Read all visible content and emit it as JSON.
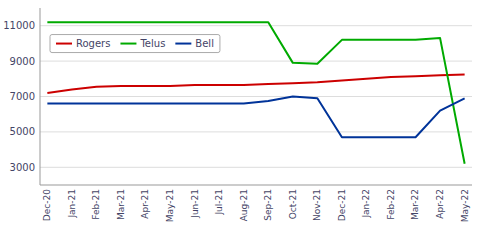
{
  "chart_data": {
    "type": "line",
    "categories": [
      "Dec-20",
      "Jan-21",
      "Feb-21",
      "Mar-21",
      "Apr-21",
      "May-21",
      "Jun-21",
      "Jul-21",
      "Aug-21",
      "Sep-21",
      "Oct-21",
      "Nov-21",
      "Dec-21",
      "Jan-22",
      "Feb-22",
      "Mar-22",
      "Apr-22",
      "May-22"
    ],
    "series": [
      {
        "name": "Rogers",
        "color": "#CC0000",
        "values": [
          7200,
          7400,
          7550,
          7600,
          7600,
          7600,
          7650,
          7650,
          7650,
          7700,
          7750,
          7800,
          7900,
          8000,
          8100,
          8150,
          8200,
          8250
        ]
      },
      {
        "name": "Telus",
        "color": "#00AA00",
        "values": [
          11200,
          11200,
          11200,
          11200,
          11200,
          11200,
          11200,
          11200,
          11200,
          11200,
          8900,
          8850,
          10200,
          10200,
          10200,
          10200,
          10300,
          3200
        ]
      },
      {
        "name": "Bell",
        "color": "#003399",
        "values": [
          6600,
          6600,
          6600,
          6600,
          6600,
          6600,
          6600,
          6600,
          6600,
          6750,
          7000,
          6900,
          4700,
          4700,
          4700,
          4700,
          6200,
          6900
        ]
      }
    ],
    "ylim": [
      2000,
      12000
    ],
    "yticks": [
      3000,
      5000,
      7000,
      9000,
      11000
    ],
    "grid": true,
    "legend": "upper left"
  }
}
